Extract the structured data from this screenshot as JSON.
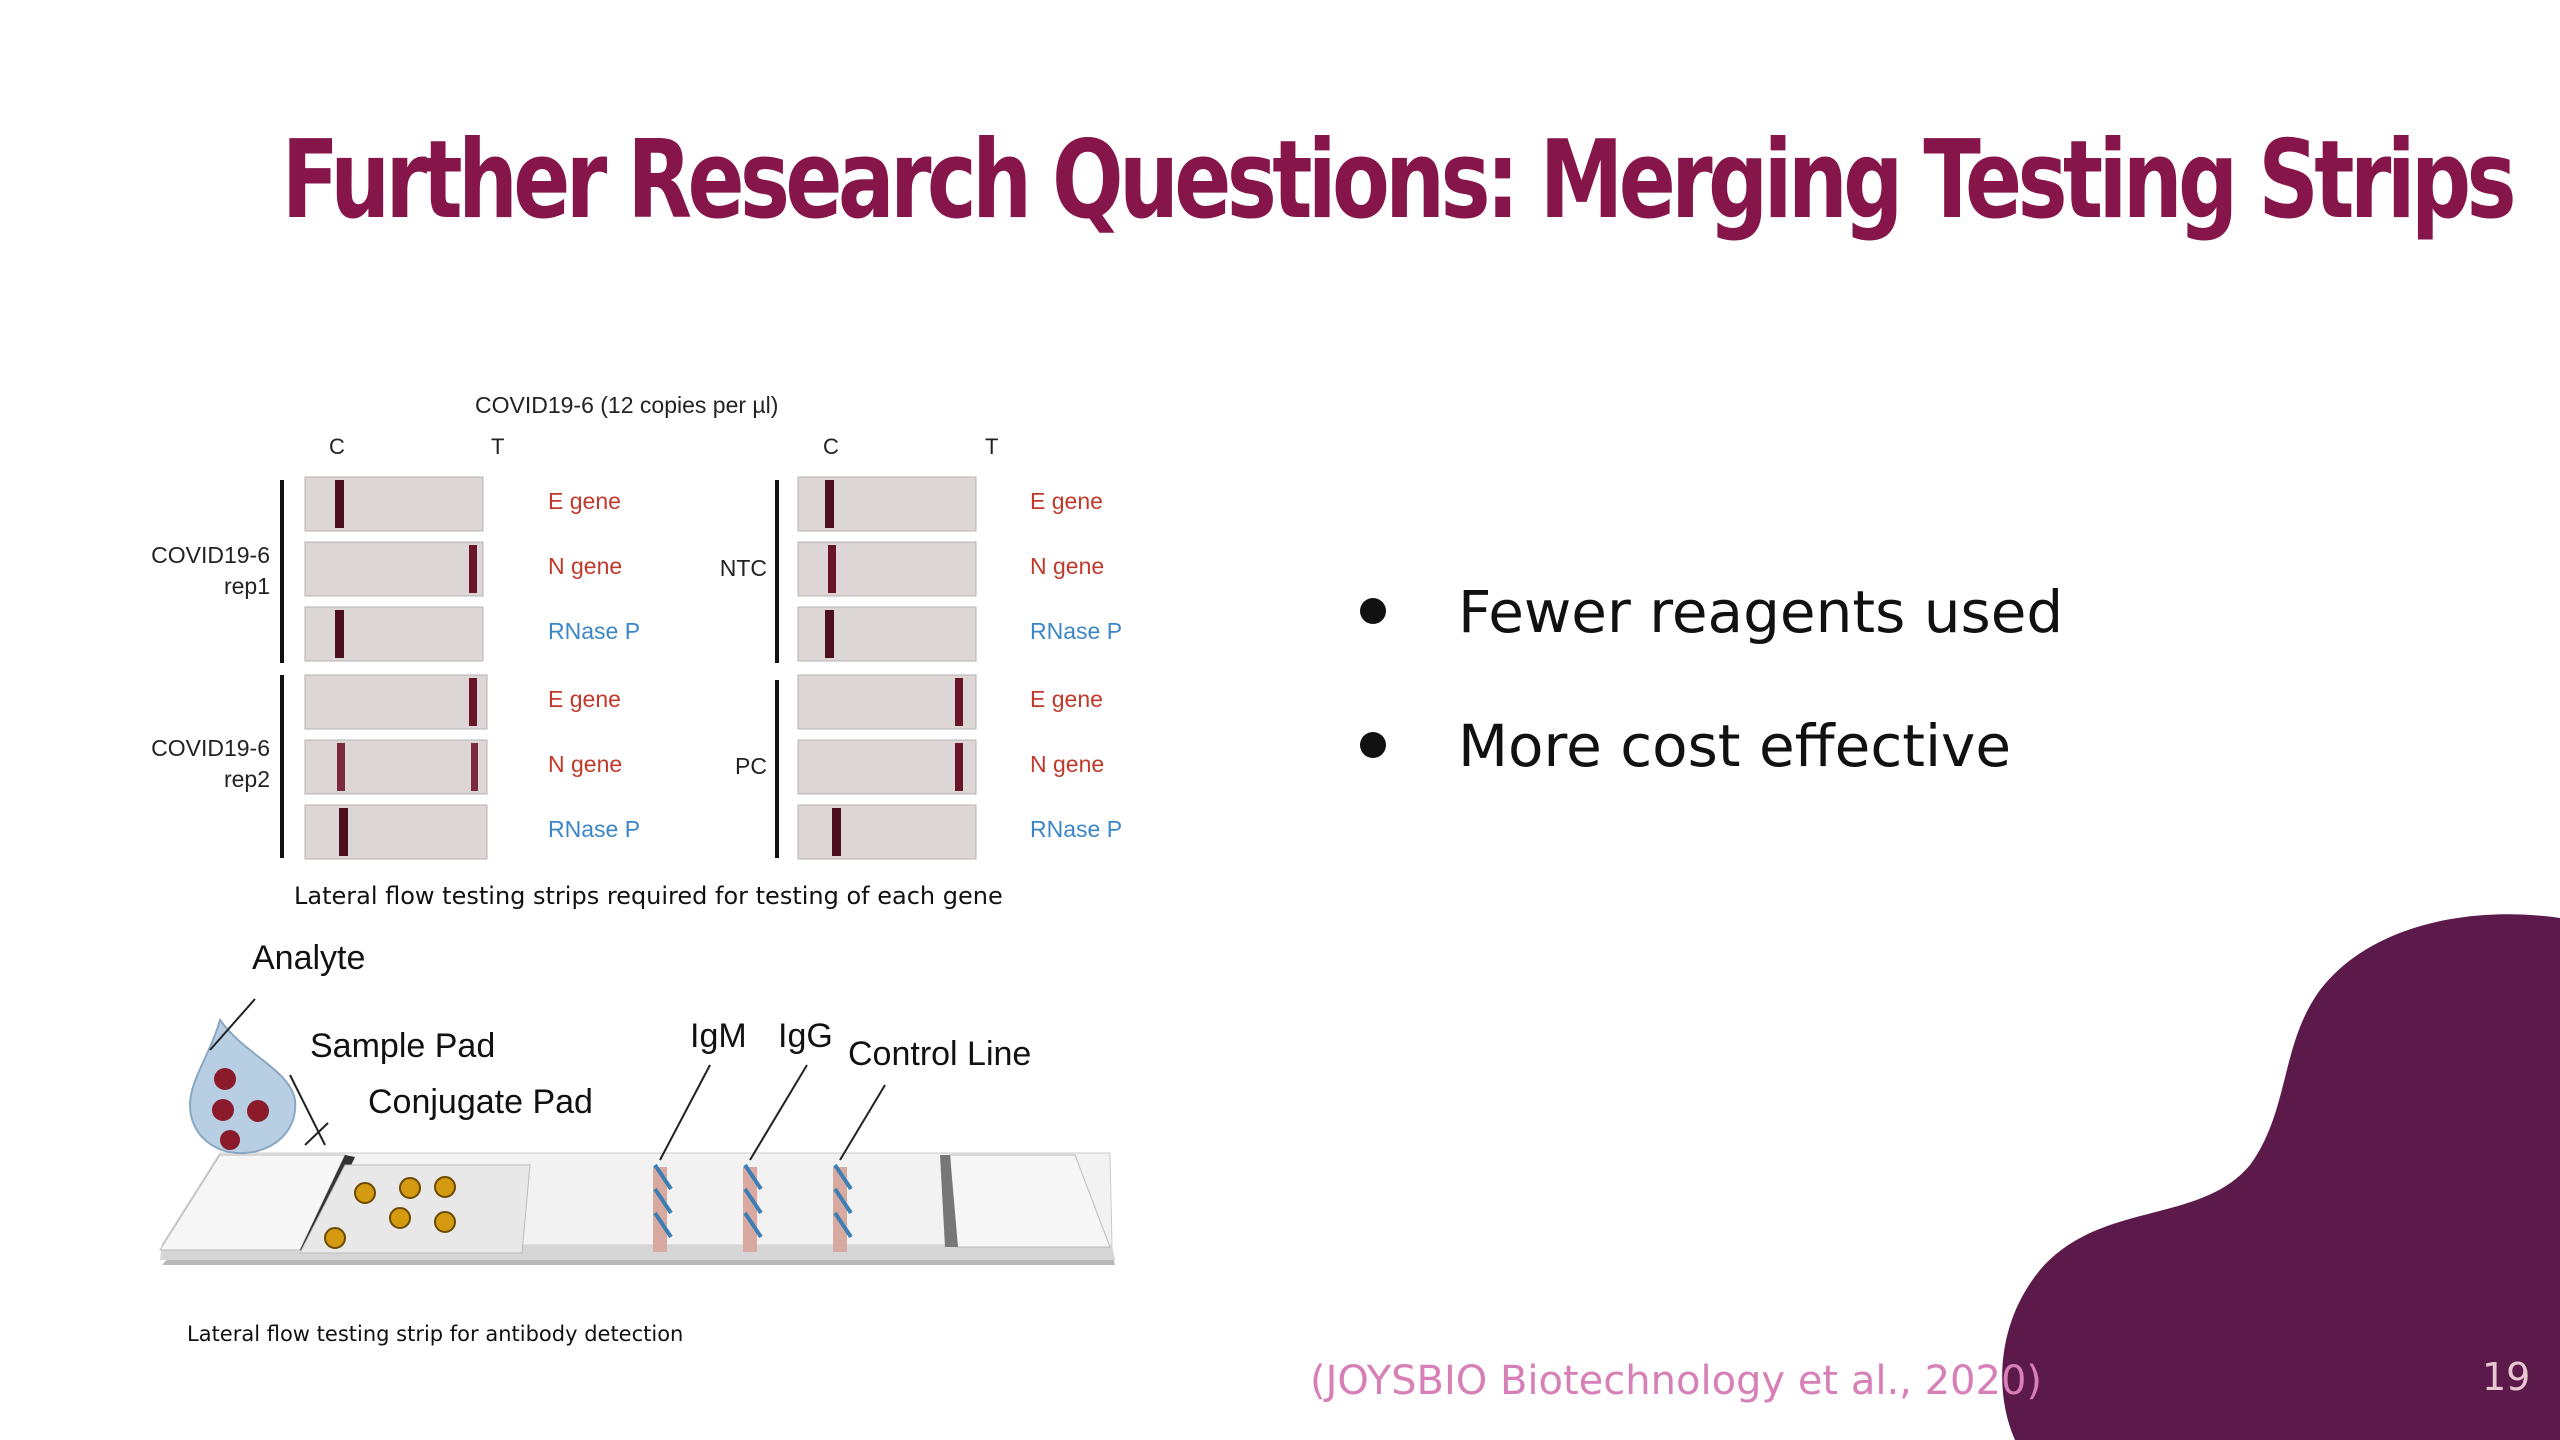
{
  "slide": {
    "title": "Further Research Questions: Merging Testing Strips",
    "page_number": "19",
    "citation": "(JOYSBIO Biotechnology et al., 2020)",
    "accent_color": "#86154a",
    "blob_color": "#5c1a4b"
  },
  "bullets": [
    {
      "text": "Fewer reagents used"
    },
    {
      "text": "More cost effective"
    }
  ],
  "figure_top": {
    "heading": "COVID19-6 (12 copies per µl)",
    "col_c": "C",
    "col_t": "T",
    "groups": {
      "rep1": [
        "COVID19-6",
        "rep1"
      ],
      "rep2": [
        "COVID19-6",
        "rep2"
      ],
      "ntc": "NTC",
      "pc": "PC"
    },
    "gene_labels": [
      "E gene",
      "N gene",
      "RNase P"
    ],
    "caption": "Lateral flow testing strips required for testing of each gene"
  },
  "figure_bottom": {
    "labels": {
      "analyte": "Analyte",
      "sample_pad": "Sample Pad",
      "conjugate_pad": "Conjugate Pad",
      "igm": "IgM",
      "igg": "IgG",
      "control_line": "Control Line"
    },
    "caption": "Lateral flow testing strip for antibody detection"
  }
}
